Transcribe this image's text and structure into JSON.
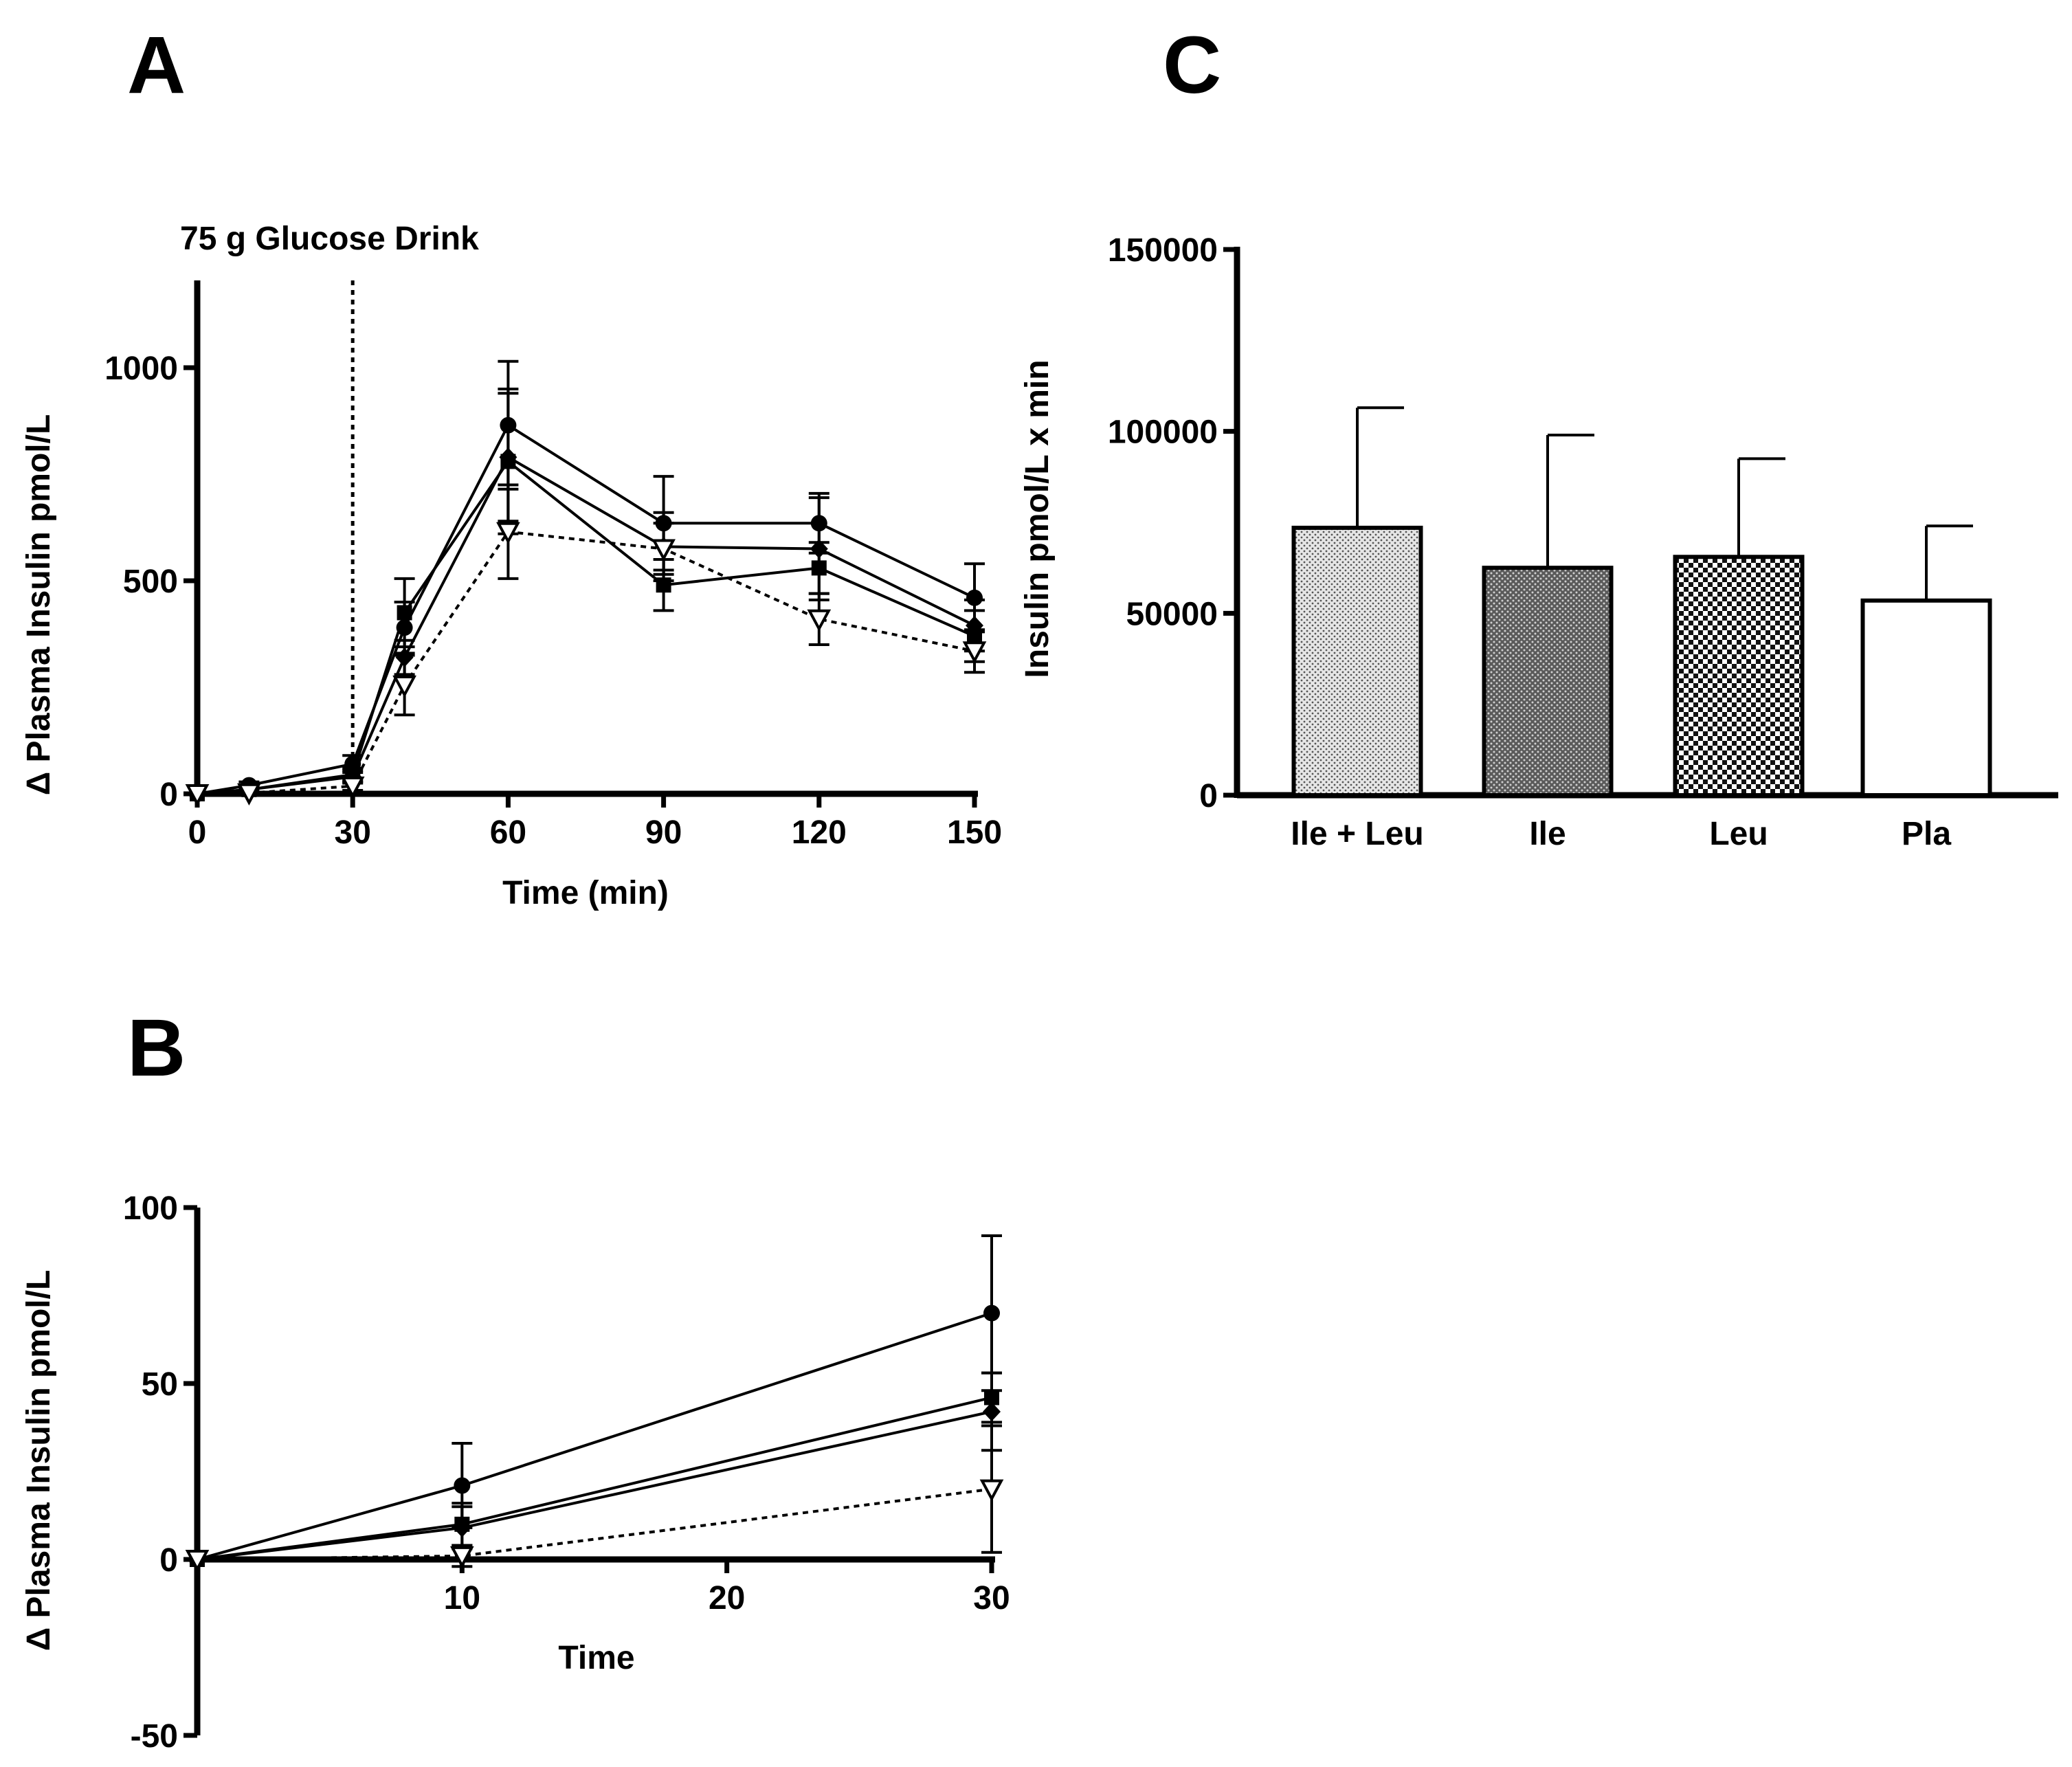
{
  "chart_data": [
    {
      "panel": "A",
      "type": "line",
      "xlabel": "Time (min)",
      "ylabel": "Δ Plasma Insulin pmol/L",
      "annotation": "75 g Glucose Drink",
      "annotation_x": 30,
      "xlim": [
        0,
        150
      ],
      "ylim": [
        0,
        1200
      ],
      "xticks": [
        0,
        30,
        60,
        90,
        120,
        150
      ],
      "yticks": [
        0,
        500,
        1000
      ],
      "x": [
        0,
        10,
        30,
        40,
        60,
        90,
        120,
        150
      ],
      "series": [
        {
          "marker": "circle",
          "line": "solid",
          "values": [
            0,
            20,
            70,
            390,
            865,
            635,
            635,
            460
          ],
          "errors": [
            0,
            8,
            20,
            60,
            150,
            110,
            70,
            80
          ]
        },
        {
          "marker": "square",
          "line": "solid",
          "values": [
            0,
            10,
            45,
            425,
            780,
            490,
            530,
            370
          ],
          "errors": [
            0,
            8,
            15,
            80,
            170,
            60,
            60,
            60
          ]
        },
        {
          "marker": "diamond",
          "line": "solid",
          "values": [
            0,
            10,
            40,
            320,
            790,
            580,
            575,
            395
          ],
          "errors": [
            0,
            8,
            15,
            40,
            150,
            80,
            120,
            60
          ]
        },
        {
          "marker": "triangle-open",
          "line": "dotted",
          "values": [
            0,
            2,
            18,
            255,
            615,
            575,
            410,
            335
          ],
          "errors": [
            0,
            4,
            10,
            70,
            110,
            60,
            60,
            50
          ]
        }
      ]
    },
    {
      "panel": "B",
      "type": "line",
      "xlabel": "Time",
      "ylabel": "Δ Plasma Insulin pmol/L",
      "xlim": [
        0,
        30
      ],
      "ylim": [
        -50,
        100
      ],
      "xticks": [
        10,
        20,
        30
      ],
      "yticks": [
        -50,
        0,
        50,
        100
      ],
      "x": [
        0,
        10,
        30
      ],
      "series": [
        {
          "marker": "circle",
          "line": "solid",
          "values": [
            0,
            21,
            70
          ],
          "errors": [
            0,
            12,
            22
          ]
        },
        {
          "marker": "square",
          "line": "solid",
          "values": [
            0,
            10,
            46
          ],
          "errors": [
            0,
            6,
            7
          ]
        },
        {
          "marker": "diamond",
          "line": "solid",
          "values": [
            0,
            9,
            42
          ],
          "errors": [
            0,
            6,
            11
          ]
        },
        {
          "marker": "triangle-open",
          "line": "dotted",
          "values": [
            0,
            1,
            20
          ],
          "errors": [
            0,
            3,
            18
          ]
        }
      ]
    },
    {
      "panel": "C",
      "type": "bar",
      "ylabel": "Insulin pmol/L x min",
      "ylim": [
        0,
        150000
      ],
      "yticks": [
        0,
        50000,
        100000,
        150000
      ],
      "categories": [
        "Ile + Leu",
        "Ile",
        "Leu",
        "Pla"
      ],
      "values": [
        73500,
        62500,
        65500,
        53500
      ],
      "errors": [
        33000,
        36500,
        27000,
        20500
      ],
      "fills": [
        "dots-light",
        "dots-dark",
        "checker",
        "white"
      ]
    }
  ]
}
